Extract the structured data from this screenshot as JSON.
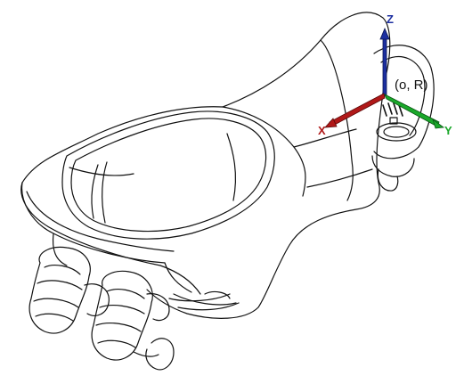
{
  "diagram": {
    "origin_label": "(o, R)",
    "axes": [
      {
        "id": "x",
        "label": "X",
        "color": "#b01818"
      },
      {
        "id": "y",
        "label": "Y",
        "color": "#1aa82a"
      },
      {
        "id": "z",
        "label": "Z",
        "color": "#1c2fa0"
      }
    ],
    "line_color": "#111111",
    "background": "#ffffff"
  }
}
